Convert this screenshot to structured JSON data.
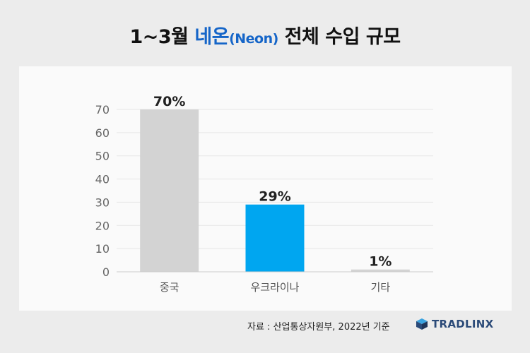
{
  "title": {
    "part1": "1~3월 ",
    "part2": "네온",
    "part3": "(Neon)",
    "part4": " 전체 수입 규모"
  },
  "source": "자료 : 산업통상자원부, 2022년 기준",
  "logo": {
    "text": "TRADLINX"
  },
  "colors": {
    "china": "#d3d3d3",
    "ukraine": "#00a6f0",
    "other": "#d3d3d3",
    "title_accent": "#1565c8"
  },
  "chart_data": {
    "type": "bar",
    "categories": [
      "중국",
      "우크라이나",
      "기타"
    ],
    "values": [
      70,
      29,
      1
    ],
    "data_labels": [
      "70%",
      "29%",
      "1%"
    ],
    "y_ticks": [
      "0",
      "10",
      "20",
      "30",
      "40",
      "50",
      "60",
      "70"
    ],
    "ylim": [
      0,
      70
    ],
    "grid": true
  }
}
